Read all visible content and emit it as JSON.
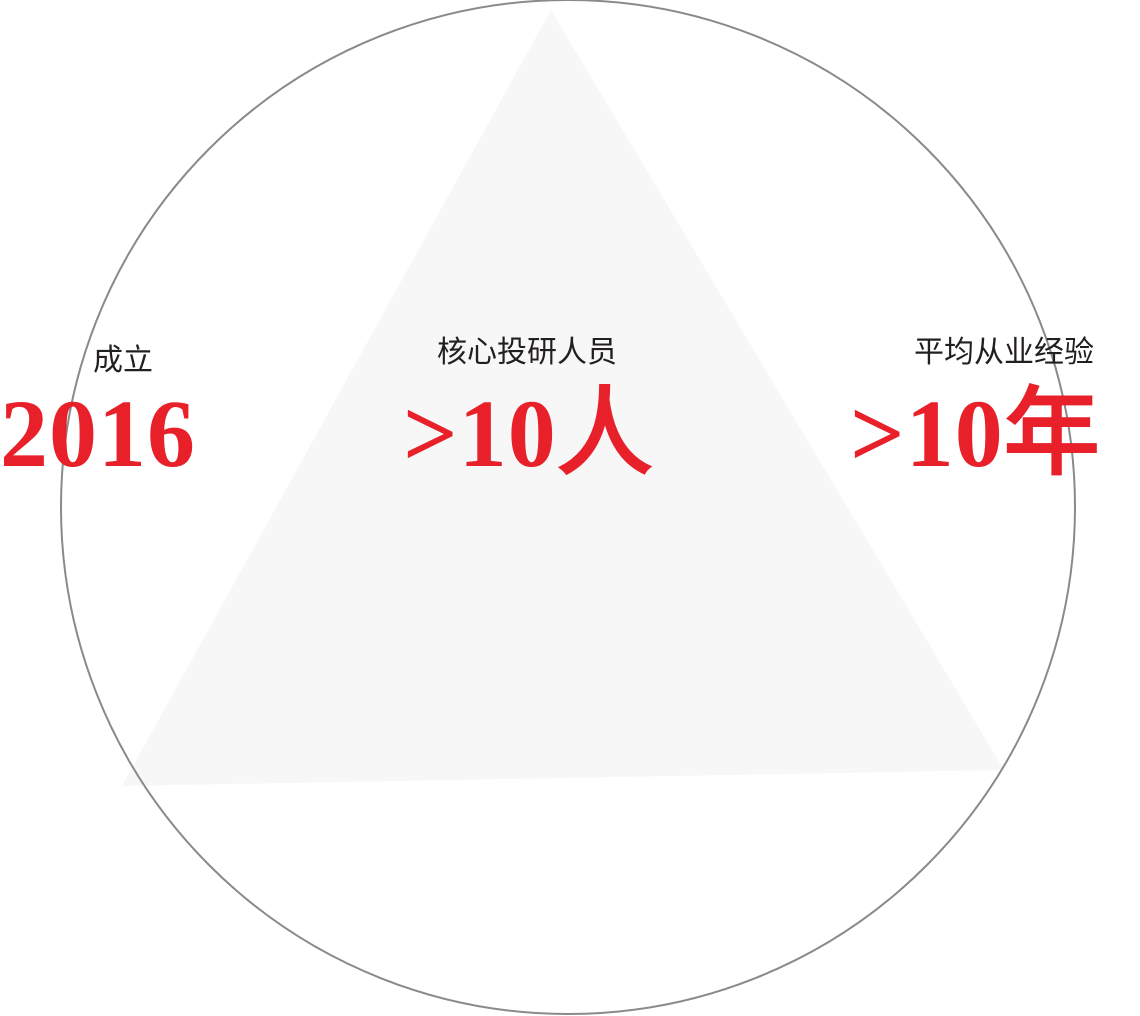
{
  "colors": {
    "accent": "#e8202a",
    "label": "#231f20",
    "circle_stroke": "#8a8a8a",
    "triangle_fill": "#f7f7f7"
  },
  "stats": [
    {
      "label": "成立",
      "value": "2016"
    },
    {
      "label": "核心投研人员",
      "value": ">10人"
    },
    {
      "label": "平均从业经验",
      "value": ">10年"
    }
  ]
}
